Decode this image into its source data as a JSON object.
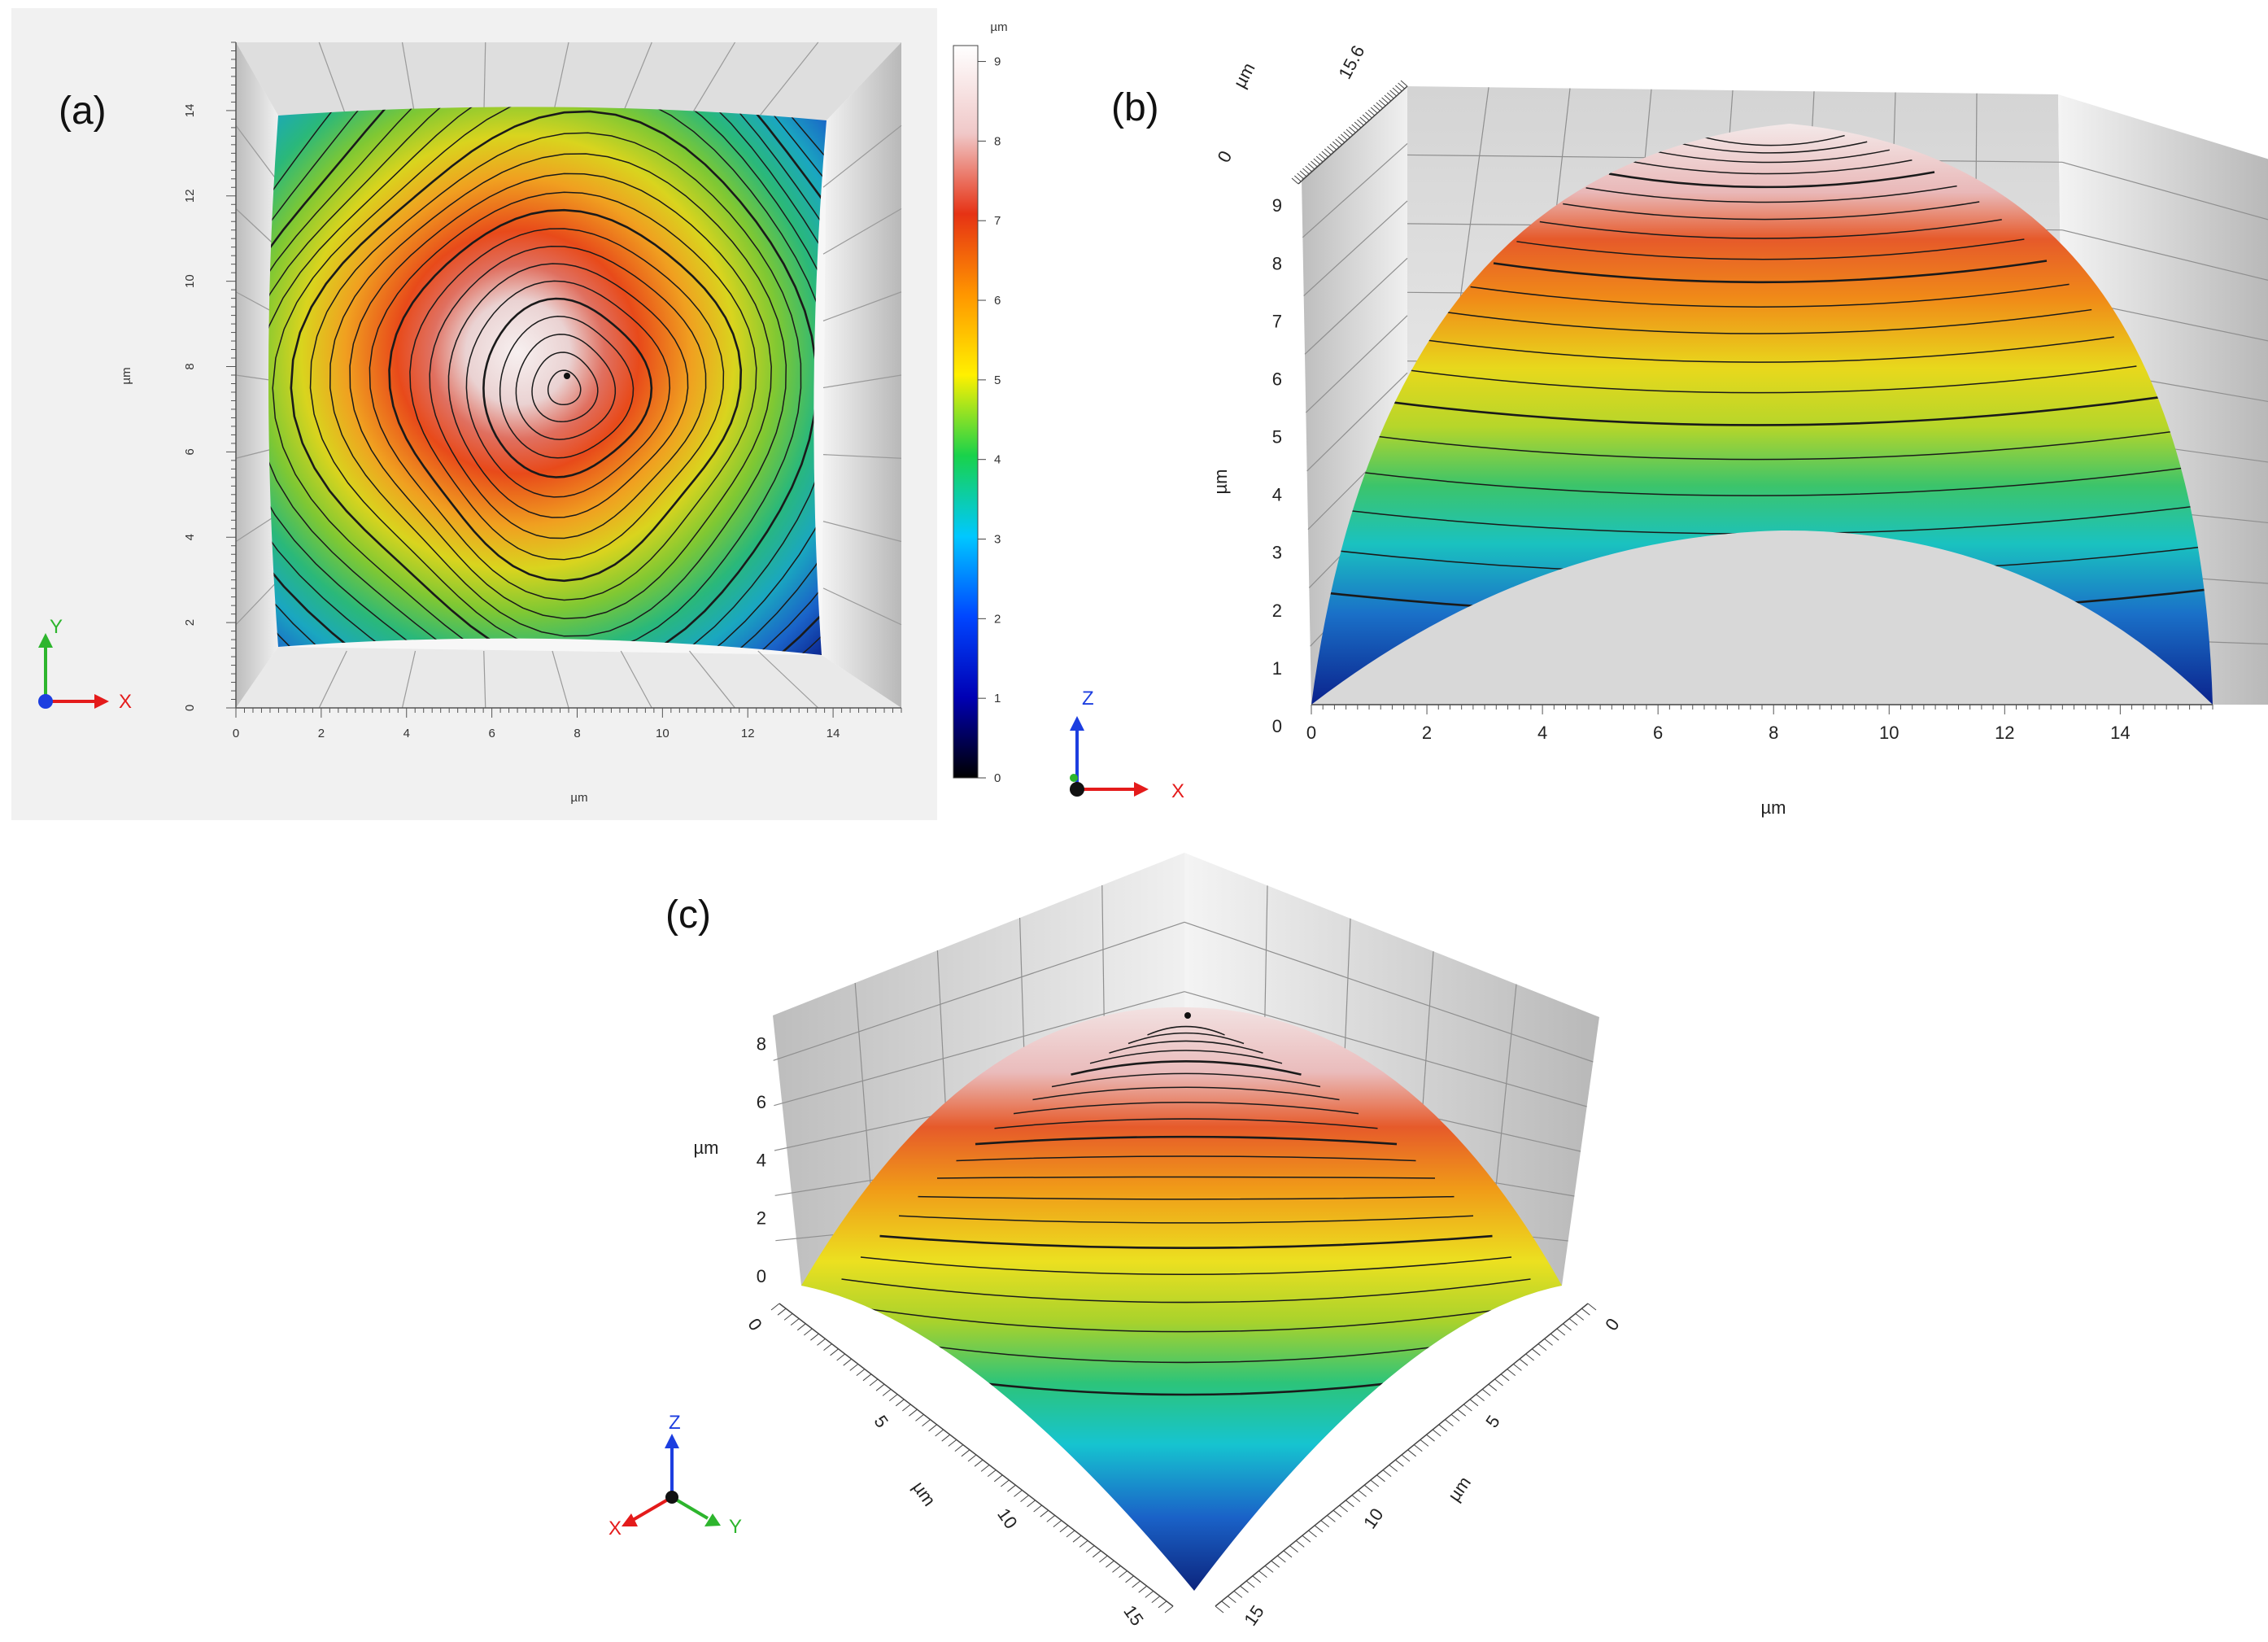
{
  "colors": {
    "accent_x": "#e41b1b",
    "accent_y": "#2db52d",
    "accent_z": "#1c3ee0",
    "peak": "#f2e6e6",
    "base": "#0a1f8a",
    "wall": "#d9d9d9"
  },
  "colormap": [
    "#000000",
    "#0000b4",
    "#0046ff",
    "#00c8ff",
    "#19d24b",
    "#fff000",
    "#ff9600",
    "#e63214",
    "#f0c8c8",
    "#ffffff"
  ],
  "chart_data": [
    {
      "type": "heatmap",
      "panel": "(a)",
      "view": "top-down 2D topography with contour lines",
      "surface": "dome, peak at x≈7.6, y≈7.8",
      "x": {
        "label": "µm",
        "ticks": [
          "0",
          "2",
          "4",
          "6",
          "8",
          "10",
          "12",
          "14"
        ],
        "range": [
          0,
          15.6
        ]
      },
      "y": {
        "label": "µm",
        "ticks": [
          "0",
          "2",
          "4",
          "6",
          "8",
          "10",
          "12",
          "14"
        ],
        "range": [
          0,
          15.6
        ]
      },
      "peak": {
        "x": 7.6,
        "y": 7.8,
        "z": 9.2
      },
      "colorbar": {
        "unit": "µm",
        "ticks": [
          "0",
          "1",
          "2",
          "3",
          "4",
          "5",
          "6",
          "7",
          "8",
          "9"
        ],
        "range": [
          0,
          9.2
        ]
      },
      "triad": [
        "Y",
        "X"
      ]
    },
    {
      "type": "surface",
      "panel": "(b)",
      "view": "3D side view along X",
      "x": {
        "label": "µm",
        "ticks": [
          "0",
          "2",
          "4",
          "6",
          "8",
          "10",
          "12",
          "14"
        ],
        "range": [
          0,
          15.6
        ]
      },
      "z": {
        "label": "µm",
        "ticks": [
          "0",
          "1",
          "2",
          "3",
          "4",
          "5",
          "6",
          "7",
          "8",
          "9"
        ],
        "range": [
          0,
          9.2
        ]
      },
      "depth_axis": {
        "label": "µm",
        "ticks": [
          "0",
          "15.6"
        ]
      },
      "triad": [
        "Z",
        "X"
      ]
    },
    {
      "type": "surface",
      "panel": "(c)",
      "view": "3D isometric view",
      "z": {
        "label": "µm",
        "ticks": [
          "0",
          "2",
          "4",
          "6",
          "8"
        ],
        "range": [
          0,
          8.8
        ]
      },
      "x_axis": {
        "label": "µm",
        "ticks": [
          "0",
          "5",
          "10",
          "15"
        ]
      },
      "y_axis": {
        "label": "µm",
        "ticks": [
          "0",
          "5",
          "10",
          "15"
        ]
      },
      "triad": [
        "Z",
        "X",
        "Y"
      ]
    }
  ]
}
